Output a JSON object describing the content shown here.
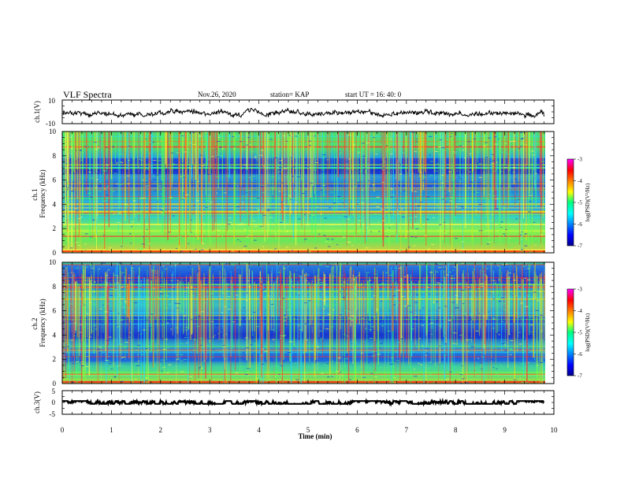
{
  "header": {
    "title": "VLF Spectra",
    "date": "Nov.26, 2020",
    "station": "station= KAP",
    "start_ut": "start  UT =   16: 40: 0"
  },
  "chart_data": [
    {
      "id": "ch1-waveform",
      "type": "line",
      "ylabel": "ch.1(V)",
      "ylim": [
        -10,
        10
      ],
      "yticks": [
        10,
        -10
      ],
      "xlim": [
        0,
        10
      ],
      "waveform_range_approx": [
        -6,
        4
      ]
    },
    {
      "id": "ch1-spectrogram",
      "type": "heatmap",
      "ylabel": "ch.1\nFrequency (kHz)",
      "ylabel_lines": [
        "ch.1",
        "Frequency (kHz)"
      ],
      "ylim": [
        0,
        10
      ],
      "yticks": [
        0,
        2,
        4,
        6,
        8,
        10
      ],
      "xlim": [
        0,
        10
      ],
      "data_end_min": 9.8,
      "colorbar": {
        "label": "log(PSD)(V²/Hz)",
        "range": [
          -7,
          -3
        ],
        "ticks": [
          -3,
          -4,
          -5,
          -6,
          -7
        ]
      }
    },
    {
      "id": "ch2-spectrogram",
      "type": "heatmap",
      "ylabel": "ch.2\nFrequency (kHz)",
      "ylabel_lines": [
        "ch.2",
        "Frequency (kHz)"
      ],
      "ylim": [
        0,
        10
      ],
      "yticks": [
        0,
        2,
        4,
        6,
        8,
        10
      ],
      "xlim": [
        0,
        10
      ],
      "data_end_min": 9.8,
      "colorbar": {
        "label": "log(PSD)(V²/Hz)",
        "range": [
          -7,
          -3
        ],
        "ticks": [
          -3,
          -4,
          -5,
          -6,
          -7
        ]
      }
    },
    {
      "id": "ch3-waveform",
      "type": "line",
      "ylabel": "ch.3(V)",
      "ylim": [
        -5,
        5
      ],
      "yticks": [
        5,
        0,
        -5
      ],
      "xlim": [
        0,
        10
      ],
      "xticks": [
        0,
        1,
        2,
        3,
        4,
        5,
        6,
        7,
        8,
        9,
        10
      ],
      "xlabel": "Time  (min)",
      "waveform_range_approx": [
        -0.6,
        0.6
      ]
    }
  ]
}
